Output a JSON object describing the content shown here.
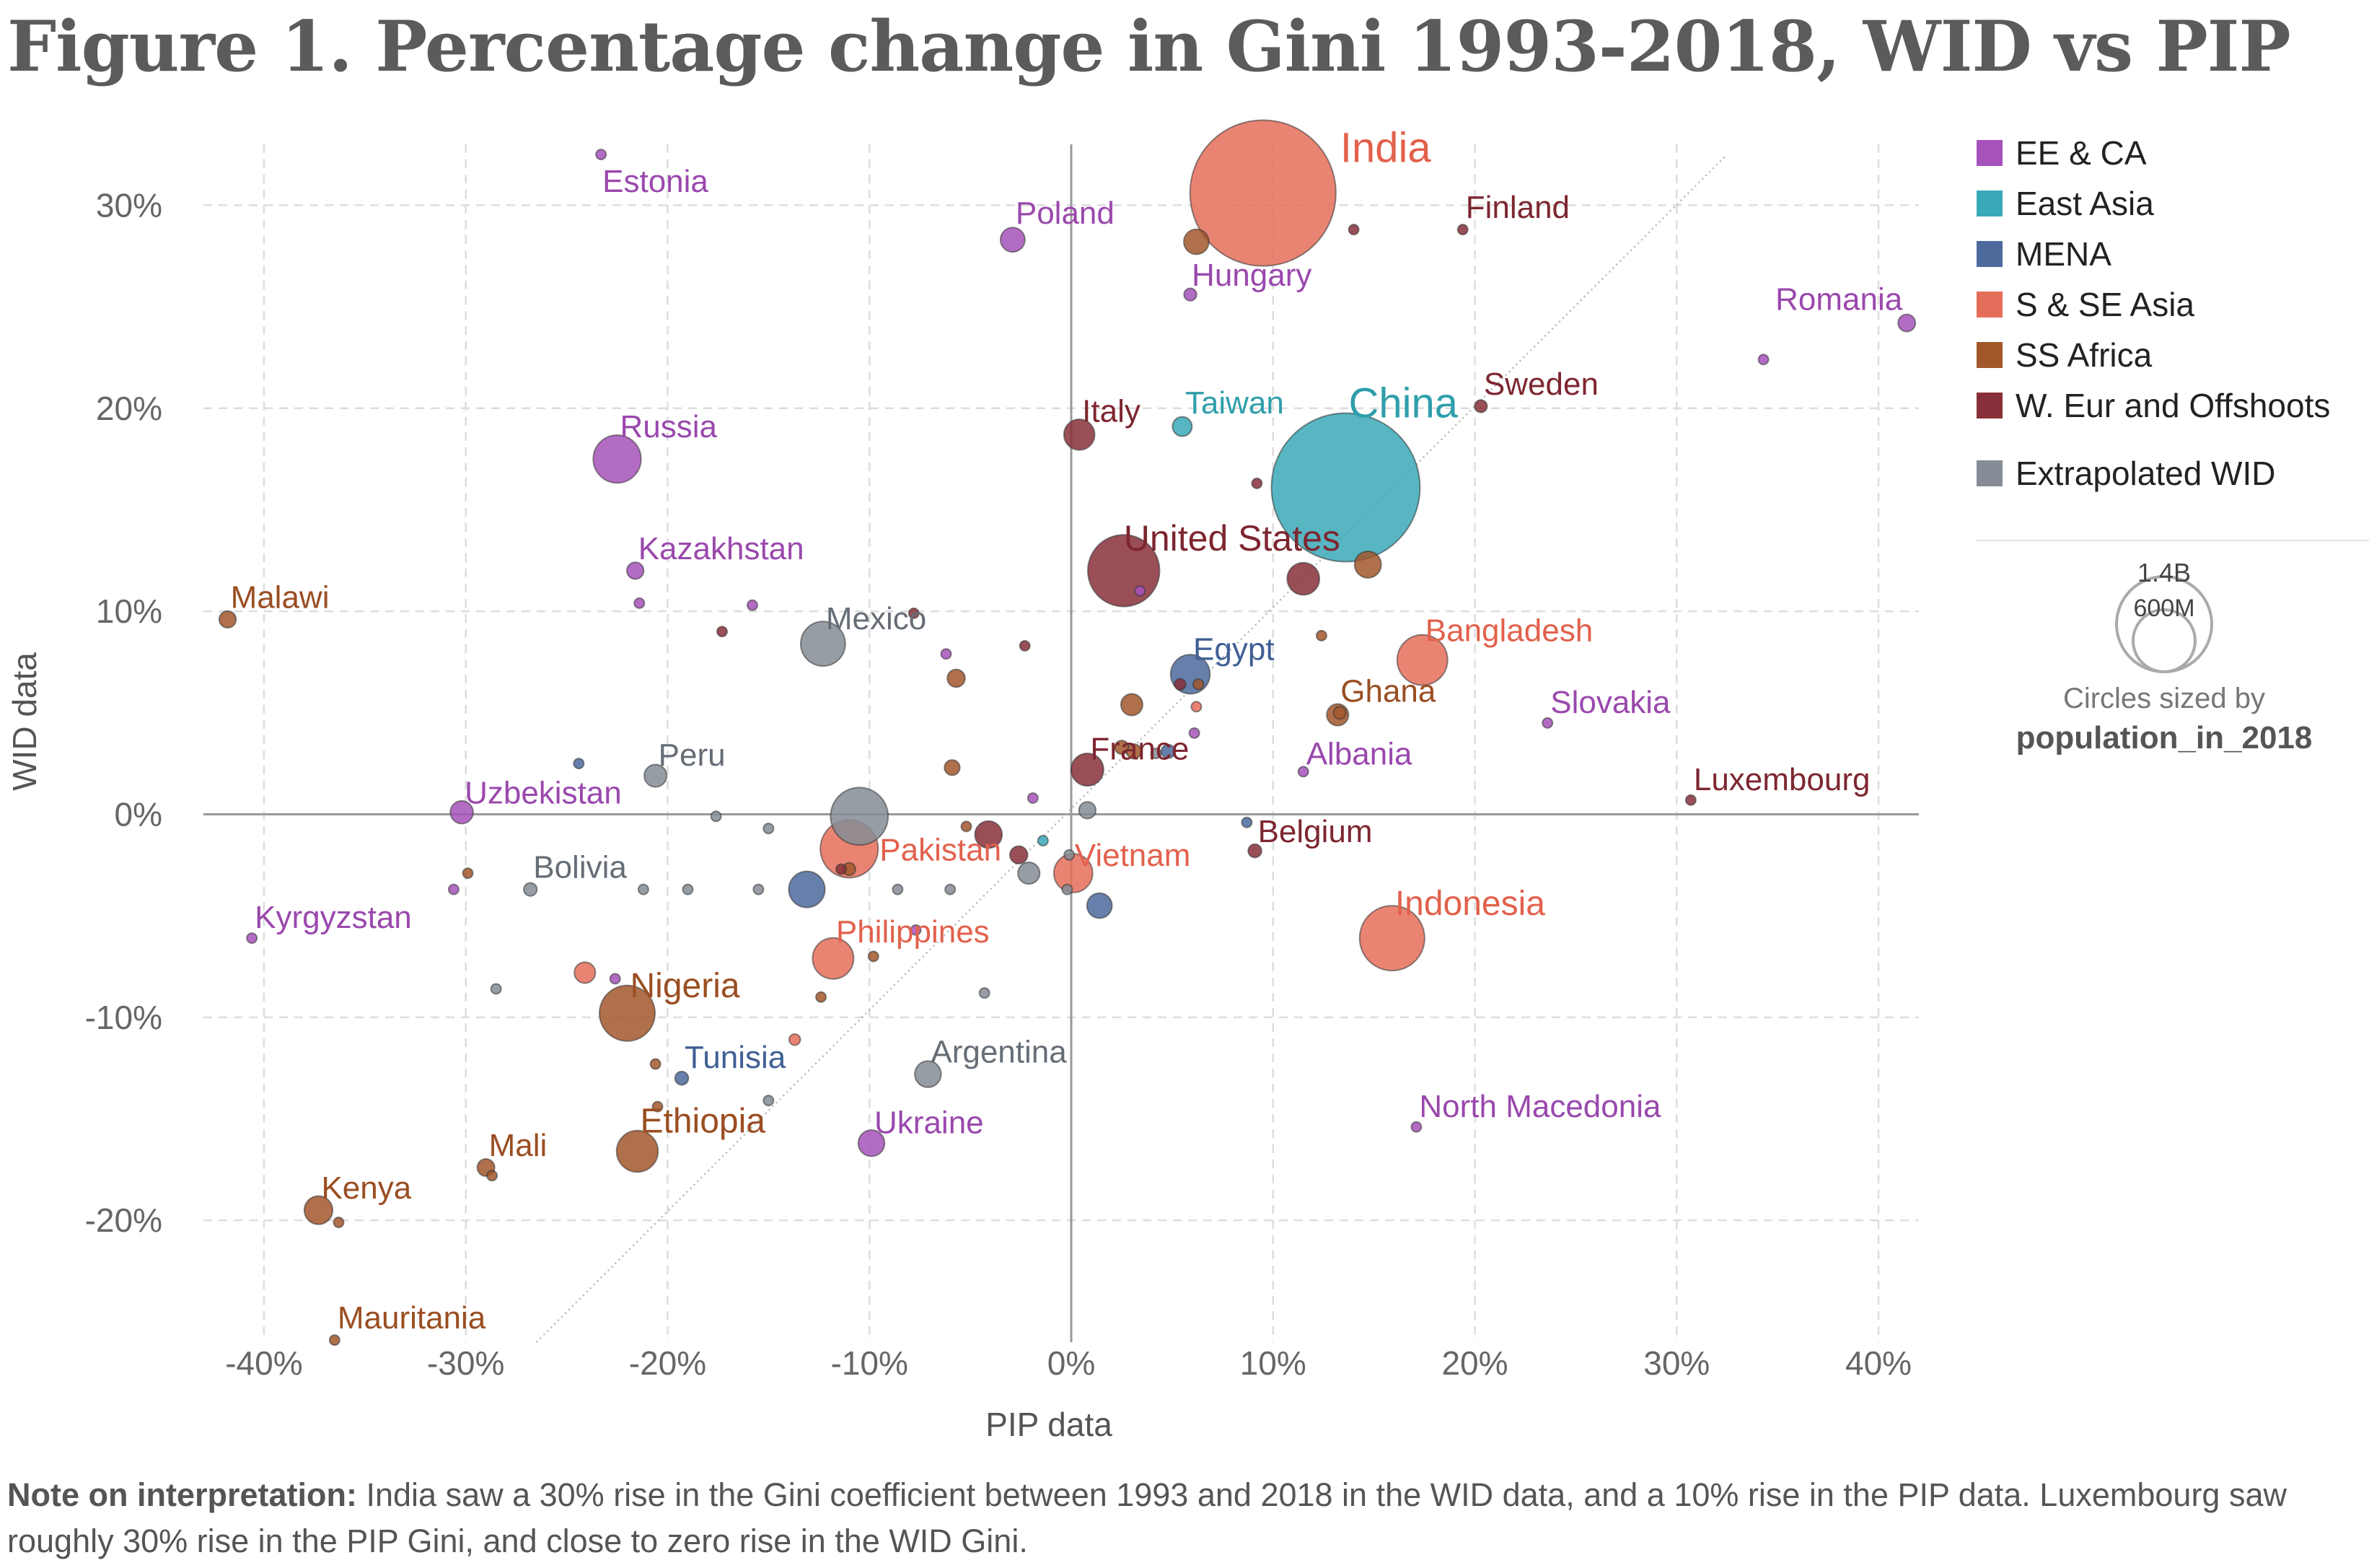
{
  "title": "Figure 1. Percentage change in Gini 1993-2018, WID vs PIP",
  "note": {
    "bold": "Note on interpretation:",
    "text": " India saw a 30% rise in the Gini coefficient between 1993 and 2018 in the WID data, and a 10% rise in the PIP data. Luxembourg saw roughly 30% rise in the PIP Gini, and close to zero rise in the WID Gini."
  },
  "legend": [
    {
      "label": "EE & CA",
      "color": "#a652ba"
    },
    {
      "label": "East Asia",
      "color": "#3aa9b7"
    },
    {
      "label": "MENA",
      "color": "#4c6a9c"
    },
    {
      "label": "S & SE Asia",
      "color": "#e56e5a"
    },
    {
      "label": "SS Africa",
      "color": "#a2572b"
    },
    {
      "label": "W. Eur and Offshoots",
      "color": "#883039"
    },
    {
      "label": "Extrapolated WID",
      "color": "#858c95"
    }
  ],
  "size_legend": {
    "large": "1.4B",
    "small": "600M",
    "caption": "Circles sized by",
    "variable": "population_in_2018"
  },
  "chart_data": {
    "type": "scatter",
    "xlabel": "PIP data",
    "ylabel": "WID data",
    "xlim": [
      -43,
      42
    ],
    "ylim": [
      -26,
      33
    ],
    "xticks": [
      -40,
      -30,
      -20,
      -10,
      0,
      10,
      20,
      30,
      40
    ],
    "xtick_labels": [
      "-40%",
      "-30%",
      "-20%",
      "-10%",
      "0%",
      "10%",
      "20%",
      "30%",
      "40%"
    ],
    "yticks": [
      -20,
      -10,
      0,
      10,
      20,
      30
    ],
    "ytick_labels": [
      "-20%",
      "-10%",
      "0%",
      "10%",
      "20%",
      "30%"
    ],
    "grid": true,
    "legend_position": "right",
    "reference_line": "y = x",
    "points": [
      {
        "label": "India",
        "x": 9.5,
        "y": 30.6,
        "group": "S & SE Asia",
        "pop": 1.35
      },
      {
        "label": "China",
        "x": 13.6,
        "y": 16.1,
        "group": "East Asia",
        "pop": 1.4
      },
      {
        "label": "Estonia",
        "x": -23.3,
        "y": 32.5,
        "group": "EE & CA",
        "pop": 0.001
      },
      {
        "label": "Poland",
        "x": -2.9,
        "y": 28.3,
        "group": "EE & CA",
        "pop": 0.038
      },
      {
        "label": "Hungary",
        "x": 5.9,
        "y": 25.6,
        "group": "EE & CA",
        "pop": 0.01
      },
      {
        "label": "Finland",
        "x": 19.4,
        "y": 28.8,
        "group": "W. Eur and Offshoots",
        "pop": 0.0055
      },
      {
        "label": "Romania",
        "x": 41.4,
        "y": 24.2,
        "group": "EE & CA",
        "pop": 0.019
      },
      {
        "label": "Sweden",
        "x": 20.3,
        "y": 20.1,
        "group": "W. Eur and Offshoots",
        "pop": 0.01
      },
      {
        "label": "Italy",
        "x": 0.4,
        "y": 18.7,
        "group": "W. Eur and Offshoots",
        "pop": 0.06
      },
      {
        "label": "Taiwan",
        "x": 5.5,
        "y": 19.1,
        "group": "East Asia",
        "pop": 0.024
      },
      {
        "label": "Russia",
        "x": -22.5,
        "y": 17.5,
        "group": "EE & CA",
        "pop": 0.145
      },
      {
        "label": "United States",
        "x": 2.6,
        "y": 12.0,
        "group": "W. Eur and Offshoots",
        "pop": 0.327
      },
      {
        "label": "Kazakhstan",
        "x": -21.6,
        "y": 12.0,
        "group": "EE & CA",
        "pop": 0.018
      },
      {
        "label": "Malawi",
        "x": -41.8,
        "y": 9.6,
        "group": "SS Africa",
        "pop": 0.018
      },
      {
        "label": "Mexico",
        "x": -12.3,
        "y": 8.4,
        "group": "Extrapolated WID",
        "pop": 0.126
      },
      {
        "label": "Egypt",
        "x": 5.9,
        "y": 6.9,
        "group": "MENA",
        "pop": 0.098
      },
      {
        "label": "Bangladesh",
        "x": 17.4,
        "y": 7.6,
        "group": "S & SE Asia",
        "pop": 0.161
      },
      {
        "label": "Ghana",
        "x": 13.2,
        "y": 4.9,
        "group": "SS Africa",
        "pop": 0.03
      },
      {
        "label": "Slovakia",
        "x": 23.6,
        "y": 4.5,
        "group": "EE & CA",
        "pop": 0.0055
      },
      {
        "label": "Albania",
        "x": 11.5,
        "y": 2.1,
        "group": "EE & CA",
        "pop": 0.003
      },
      {
        "label": "France",
        "x": 0.8,
        "y": 2.2,
        "group": "W. Eur and Offshoots",
        "pop": 0.067
      },
      {
        "label": "Luxembourg",
        "x": 30.7,
        "y": 0.7,
        "group": "W. Eur and Offshoots",
        "pop": 0.0006
      },
      {
        "label": "Peru",
        "x": -20.6,
        "y": 1.9,
        "group": "Extrapolated WID",
        "pop": 0.032
      },
      {
        "label": "Uzbekistan",
        "x": -30.2,
        "y": 0.1,
        "group": "EE & CA",
        "pop": 0.033
      },
      {
        "label": "Belgium",
        "x": 9.1,
        "y": -1.8,
        "group": "W. Eur and Offshoots",
        "pop": 0.0115
      },
      {
        "label": "Pakistan",
        "x": -11.0,
        "y": -1.7,
        "group": "S & SE Asia",
        "pop": 0.212
      },
      {
        "label": "Vietnam",
        "x": 0.1,
        "y": -2.9,
        "group": "S & SE Asia",
        "pop": 0.095
      },
      {
        "label": "Bolivia",
        "x": -26.8,
        "y": -3.7,
        "group": "Extrapolated WID",
        "pop": 0.011
      },
      {
        "label": "Indonesia",
        "x": 15.9,
        "y": -6.1,
        "group": "S & SE Asia",
        "pop": 0.268
      },
      {
        "label": "Kyrgyzstan",
        "x": -40.6,
        "y": -6.1,
        "group": "EE & CA",
        "pop": 0.0065
      },
      {
        "label": "Philippines",
        "x": -11.8,
        "y": -7.1,
        "group": "S & SE Asia",
        "pop": 0.107
      },
      {
        "label": "Nigeria",
        "x": -22.0,
        "y": -9.8,
        "group": "SS Africa",
        "pop": 0.196
      },
      {
        "label": "Tunisia",
        "x": -19.3,
        "y": -13.0,
        "group": "MENA",
        "pop": 0.0115
      },
      {
        "label": "Argentina",
        "x": -7.1,
        "y": -12.8,
        "group": "Extrapolated WID",
        "pop": 0.044
      },
      {
        "label": "North Macedonia",
        "x": 17.1,
        "y": -15.4,
        "group": "EE & CA",
        "pop": 0.002
      },
      {
        "label": "Ethiopia",
        "x": -21.5,
        "y": -16.6,
        "group": "SS Africa",
        "pop": 0.109
      },
      {
        "label": "Ukraine",
        "x": -9.9,
        "y": -16.2,
        "group": "EE & CA",
        "pop": 0.044
      },
      {
        "label": "Mali",
        "x": -29.0,
        "y": -17.4,
        "group": "SS Africa",
        "pop": 0.019
      },
      {
        "label": "Kenya",
        "x": -37.3,
        "y": -19.5,
        "group": "SS Africa",
        "pop": 0.051
      },
      {
        "label": "Mauritania",
        "x": -36.5,
        "y": -25.9,
        "group": "SS Africa",
        "pop": 0.0045
      },
      {
        "label": "",
        "x": 6.2,
        "y": 28.2,
        "group": "SS Africa",
        "pop": 0.04
      },
      {
        "label": "",
        "x": 14.0,
        "y": 28.8,
        "group": "W. Eur and Offshoots",
        "pop": 0.005
      },
      {
        "label": "",
        "x": 34.3,
        "y": 22.4,
        "group": "EE & CA",
        "pop": 0.004
      },
      {
        "label": "",
        "x": 9.2,
        "y": 16.3,
        "group": "W. Eur and Offshoots",
        "pop": 0.006
      },
      {
        "label": "",
        "x": 11.5,
        "y": 11.6,
        "group": "W. Eur and Offshoots",
        "pop": 0.066
      },
      {
        "label": "",
        "x": 14.7,
        "y": 12.3,
        "group": "SS Africa",
        "pop": 0.045
      },
      {
        "label": "",
        "x": 3.4,
        "y": 11.0,
        "group": "EE & CA",
        "pop": 0.003
      },
      {
        "label": "",
        "x": -21.4,
        "y": 10.4,
        "group": "EE & CA",
        "pop": 0.004
      },
      {
        "label": "",
        "x": -15.8,
        "y": 10.3,
        "group": "EE & CA",
        "pop": 0.004
      },
      {
        "label": "",
        "x": -17.3,
        "y": 9.0,
        "group": "W. Eur and Offshoots",
        "pop": 0.005
      },
      {
        "label": "",
        "x": -7.8,
        "y": 9.9,
        "group": "W. Eur and Offshoots",
        "pop": 0.006
      },
      {
        "label": "",
        "x": -6.2,
        "y": 7.9,
        "group": "EE & CA",
        "pop": 0.004
      },
      {
        "label": "",
        "x": -2.3,
        "y": 8.3,
        "group": "W. Eur and Offshoots",
        "pop": 0.005
      },
      {
        "label": "",
        "x": 12.4,
        "y": 8.8,
        "group": "SS Africa",
        "pop": 0.006
      },
      {
        "label": "",
        "x": -5.7,
        "y": 6.7,
        "group": "SS Africa",
        "pop": 0.02
      },
      {
        "label": "",
        "x": 3.0,
        "y": 5.4,
        "group": "SS Africa",
        "pop": 0.03
      },
      {
        "label": "",
        "x": 5.4,
        "y": 6.4,
        "group": "W. Eur and Offshoots",
        "pop": 0.008
      },
      {
        "label": "",
        "x": 6.3,
        "y": 6.4,
        "group": "SS Africa",
        "pop": 0.007
      },
      {
        "label": "",
        "x": 6.2,
        "y": 5.3,
        "group": "S & SE Asia",
        "pop": 0.006
      },
      {
        "label": "",
        "x": 13.3,
        "y": 5.0,
        "group": "SS Africa",
        "pop": 0.01
      },
      {
        "label": "",
        "x": 6.1,
        "y": 4.0,
        "group": "EE & CA",
        "pop": 0.003
      },
      {
        "label": "",
        "x": 2.5,
        "y": 3.3,
        "group": "SS Africa",
        "pop": 0.012
      },
      {
        "label": "",
        "x": 3.1,
        "y": 3.1,
        "group": "SS Africa",
        "pop": 0.014
      },
      {
        "label": "",
        "x": 4.2,
        "y": 3.0,
        "group": "Extrapolated WID",
        "pop": 0.005
      },
      {
        "label": "",
        "x": 4.8,
        "y": 3.1,
        "group": "MENA",
        "pop": 0.012
      },
      {
        "label": "",
        "x": -5.9,
        "y": 2.3,
        "group": "SS Africa",
        "pop": 0.015
      },
      {
        "label": "",
        "x": -24.4,
        "y": 2.5,
        "group": "MENA",
        "pop": 0.004
      },
      {
        "label": "",
        "x": -1.9,
        "y": 0.8,
        "group": "EE & CA",
        "pop": 0.003
      },
      {
        "label": "",
        "x": 0.8,
        "y": 0.2,
        "group": "Extrapolated WID",
        "pop": 0.018
      },
      {
        "label": "",
        "x": -10.5,
        "y": -0.1,
        "group": "Extrapolated WID",
        "pop": 0.21
      },
      {
        "label": "",
        "x": -17.6,
        "y": -0.1,
        "group": "Extrapolated WID",
        "pop": 0.004
      },
      {
        "label": "",
        "x": -15.0,
        "y": -0.7,
        "group": "Extrapolated WID",
        "pop": 0.004
      },
      {
        "label": "",
        "x": 8.7,
        "y": -0.4,
        "group": "MENA",
        "pop": 0.005
      },
      {
        "label": "",
        "x": -5.2,
        "y": -0.6,
        "group": "SS Africa",
        "pop": 0.006
      },
      {
        "label": "",
        "x": -4.1,
        "y": -1.0,
        "group": "W. Eur and Offshoots",
        "pop": 0.047
      },
      {
        "label": "",
        "x": -1.4,
        "y": -1.3,
        "group": "East Asia",
        "pop": 0.003
      },
      {
        "label": "",
        "x": -2.6,
        "y": -2.0,
        "group": "W. Eur and Offshoots",
        "pop": 0.02
      },
      {
        "label": "",
        "x": -0.1,
        "y": -2.0,
        "group": "Extrapolated WID",
        "pop": 0.004
      },
      {
        "label": "",
        "x": -11.4,
        "y": -2.7,
        "group": "W. Eur and Offshoots",
        "pop": 0.005
      },
      {
        "label": "",
        "x": -11.0,
        "y": -2.7,
        "group": "SS Africa",
        "pop": 0.01
      },
      {
        "label": "",
        "x": -2.1,
        "y": -2.9,
        "group": "Extrapolated WID",
        "pop": 0.03
      },
      {
        "label": "",
        "x": -29.9,
        "y": -2.9,
        "group": "SS Africa",
        "pop": 0.004
      },
      {
        "label": "",
        "x": -30.6,
        "y": -3.7,
        "group": "EE & CA",
        "pop": 0.003
      },
      {
        "label": "",
        "x": -21.2,
        "y": -3.7,
        "group": "Extrapolated WID",
        "pop": 0.004
      },
      {
        "label": "",
        "x": -19.0,
        "y": -3.7,
        "group": "Extrapolated WID",
        "pop": 0.004
      },
      {
        "label": "",
        "x": -15.5,
        "y": -3.7,
        "group": "Extrapolated WID",
        "pop": 0.004
      },
      {
        "label": "",
        "x": -13.1,
        "y": -3.7,
        "group": "MENA",
        "pop": 0.083
      },
      {
        "label": "",
        "x": -8.6,
        "y": -3.7,
        "group": "Extrapolated WID",
        "pop": 0.004
      },
      {
        "label": "",
        "x": -6.0,
        "y": -3.7,
        "group": "Extrapolated WID",
        "pop": 0.004
      },
      {
        "label": "",
        "x": -0.2,
        "y": -3.7,
        "group": "Extrapolated WID",
        "pop": 0.004
      },
      {
        "label": "",
        "x": 1.4,
        "y": -4.5,
        "group": "MENA",
        "pop": 0.04
      },
      {
        "label": "",
        "x": -7.7,
        "y": -5.7,
        "group": "EE & CA",
        "pop": 0.004
      },
      {
        "label": "",
        "x": -9.8,
        "y": -7.0,
        "group": "SS Africa",
        "pop": 0.004
      },
      {
        "label": "",
        "x": -24.1,
        "y": -7.8,
        "group": "S & SE Asia",
        "pop": 0.028
      },
      {
        "label": "",
        "x": -22.6,
        "y": -8.1,
        "group": "EE & CA",
        "pop": 0.003
      },
      {
        "label": "",
        "x": -28.5,
        "y": -8.6,
        "group": "Extrapolated WID",
        "pop": 0.004
      },
      {
        "label": "",
        "x": -12.4,
        "y": -9.0,
        "group": "SS Africa",
        "pop": 0.005
      },
      {
        "label": "",
        "x": -4.3,
        "y": -8.8,
        "group": "Extrapolated WID",
        "pop": 0.004
      },
      {
        "label": "",
        "x": -13.7,
        "y": -11.1,
        "group": "S & SE Asia",
        "pop": 0.008
      },
      {
        "label": "",
        "x": -20.6,
        "y": -12.3,
        "group": "SS Africa",
        "pop": 0.005
      },
      {
        "label": "",
        "x": -20.5,
        "y": -14.4,
        "group": "SS Africa",
        "pop": 0.005
      },
      {
        "label": "",
        "x": -15.0,
        "y": -14.1,
        "group": "Extrapolated WID",
        "pop": 0.004
      },
      {
        "label": "",
        "x": -28.7,
        "y": -17.8,
        "group": "SS Africa",
        "pop": 0.006
      },
      {
        "label": "",
        "x": -36.3,
        "y": -20.1,
        "group": "SS Africa",
        "pop": 0.004
      }
    ],
    "label_styles": {
      "India": {
        "size": 58,
        "dx": 8,
        "dy": -10
      },
      "China": {
        "size": 58,
        "dx": 0,
        "dy": -56
      },
      "Estonia": {
        "size": 44,
        "dx": 4,
        "dy": 56
      },
      "Poland": {
        "size": 44,
        "dx": 2,
        "dy": -22
      },
      "Hungary": {
        "size": 44,
        "dx": 0,
        "dy": -8
      },
      "Finland": {
        "size": 44,
        "dx": 0,
        "dy": -16
      },
      "Romania": {
        "size": 44,
        "dx": -200,
        "dy": -18
      },
      "Sweden": {
        "size": 44,
        "dx": 0,
        "dy": -16
      },
      "Italy": {
        "size": 44,
        "dx": 0,
        "dy": -18
      },
      "Taiwan": {
        "size": 44,
        "dx": 0,
        "dy": -18
      },
      "Russia": {
        "size": 44,
        "dx": 0,
        "dy": -30
      },
      "United States": {
        "size": 50,
        "dx": 0,
        "dy": -26
      },
      "Kazakhstan": {
        "size": 44,
        "dx": 0,
        "dy": -16
      },
      "Malawi": {
        "size": 44,
        "dx": 0,
        "dy": -16
      },
      "Mexico": {
        "size": 44,
        "dx": 0,
        "dy": -20
      },
      "Egypt": {
        "size": 44,
        "dx": 0,
        "dy": -20
      },
      "Bangladesh": {
        "size": 44,
        "dx": 0,
        "dy": -26
      },
      "Ghana": {
        "size": 44,
        "dx": 0,
        "dy": -18
      },
      "Slovakia": {
        "size": 44,
        "dx": 0,
        "dy": -14
      },
      "Albania": {
        "size": 44,
        "dx": 0,
        "dy": -10
      },
      "France": {
        "size": 44,
        "dx": 0,
        "dy": -14
      },
      "Luxembourg": {
        "size": 44,
        "dx": 0,
        "dy": -14
      },
      "Peru": {
        "size": 44,
        "dx": 0,
        "dy": -14
      },
      "Uzbekistan": {
        "size": 44,
        "dx": 0,
        "dy": -12
      },
      "Belgium": {
        "size": 44,
        "dx": 0,
        "dy": -12
      },
      "Pakistan": {
        "size": 44,
        "dx": 0,
        "dy": 14
      },
      "Vietnam": {
        "size": 44,
        "dx": 0,
        "dy": -10
      },
      "Bolivia": {
        "size": 44,
        "dx": 0,
        "dy": -16
      },
      "Indonesia": {
        "size": 48,
        "dx": 0,
        "dy": -32
      },
      "Kyrgyzstan": {
        "size": 44,
        "dx": 0,
        "dy": -14
      },
      "Philippines": {
        "size": 44,
        "dx": 0,
        "dy": -22
      },
      "Nigeria": {
        "size": 48,
        "dx": 0,
        "dy": -22
      },
      "Tunisia": {
        "size": 44,
        "dx": 0,
        "dy": -14
      },
      "Argentina": {
        "size": 44,
        "dx": 0,
        "dy": -16
      },
      "North Macedonia": {
        "size": 44,
        "dx": 0,
        "dy": -14
      },
      "Ethiopia": {
        "size": 48,
        "dx": 0,
        "dy": -26
      },
      "Ukraine": {
        "size": 44,
        "dx": 0,
        "dy": -14
      },
      "Mali": {
        "size": 44,
        "dx": 0,
        "dy": -16
      },
      "Kenya": {
        "size": 44,
        "dx": 0,
        "dy": -16
      },
      "Mauritania": {
        "size": 44,
        "dx": 0,
        "dy": -16
      }
    }
  }
}
